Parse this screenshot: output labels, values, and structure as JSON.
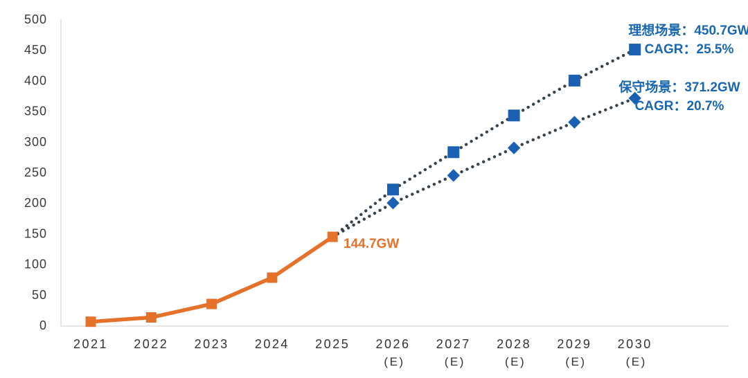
{
  "chart": {
    "annotations": {
      "current_value": "144.7GW",
      "ideal": {
        "line1": "理想场景：450.7GW",
        "line2": "CAGR：25.5%"
      },
      "conservative": {
        "line1": "保守场景：371.2GW",
        "line2": "CAGR：20.7%"
      }
    },
    "colors": {
      "historical": "#E5722A",
      "forecast_marker": "#1A60B3",
      "forecast_text": "#1A67B0",
      "dotted_line": "#37444E",
      "axis_line": "#DEDEDE",
      "tick_text": "#3A3A3A"
    }
  },
  "chart_data": {
    "type": "line",
    "title": "",
    "unit": "GW",
    "ylim": [
      0,
      500
    ],
    "y_tick_step": 50,
    "grid": false,
    "legend_position": "annotations-right",
    "x_labels": [
      {
        "year": "2021",
        "tag": ""
      },
      {
        "year": "2022",
        "tag": ""
      },
      {
        "year": "2023",
        "tag": ""
      },
      {
        "year": "2024",
        "tag": ""
      },
      {
        "year": "2025",
        "tag": ""
      },
      {
        "year": "2026",
        "tag": "(E)"
      },
      {
        "year": "2027",
        "tag": "(E)"
      },
      {
        "year": "2028",
        "tag": "(E)"
      },
      {
        "year": "2029",
        "tag": "(E)"
      },
      {
        "year": "2030",
        "tag": "(E)"
      }
    ],
    "series": [
      {
        "id": "historical",
        "style": "solid",
        "marker": "square",
        "values": [
          6,
          13,
          35,
          78,
          144.7,
          null,
          null,
          null,
          null,
          null
        ]
      },
      {
        "id": "ideal-scenario",
        "name": "理想场景",
        "style": "dotted",
        "marker": "square",
        "cagr": "25.5%",
        "values": [
          null,
          null,
          null,
          null,
          144.7,
          222,
          283,
          343,
          400,
          450.7
        ]
      },
      {
        "id": "conservative-scenario",
        "name": "保守场景",
        "style": "dotted",
        "marker": "diamond",
        "cagr": "20.7%",
        "values": [
          null,
          null,
          null,
          null,
          144.7,
          200,
          245,
          290,
          332,
          371.2
        ]
      }
    ]
  }
}
